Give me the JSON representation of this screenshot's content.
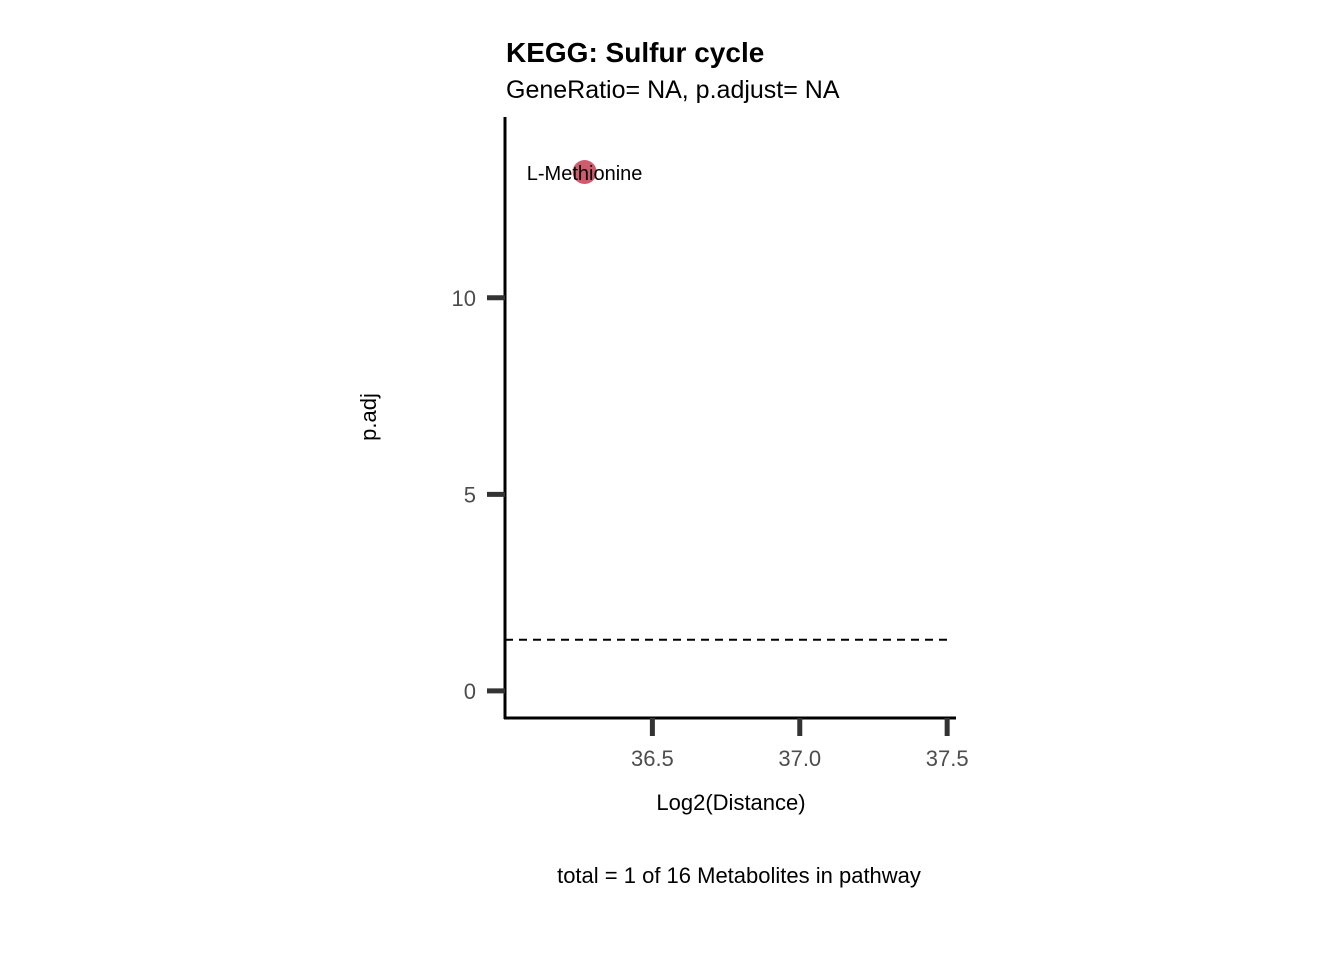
{
  "chart_data": {
    "type": "scatter",
    "title": "KEGG: Sulfur cycle",
    "subtitle": "GeneRatio= NA, p.adjust= NA",
    "xlabel": "Log2(Distance)",
    "ylabel": "p.adj",
    "caption": "total = 1 of 16 Metabolites in pathway",
    "xlim": [
      36.0,
      37.53
    ],
    "ylim": [
      -0.69,
      14.6
    ],
    "x_ticks": [
      36.5,
      37.0,
      37.5
    ],
    "x_tick_labels": [
      "36.5",
      "37.0",
      "37.5"
    ],
    "y_ticks": [
      0,
      5,
      10
    ],
    "y_tick_labels": [
      "0",
      "5",
      "10"
    ],
    "grid": false,
    "threshold_line": {
      "y": 1.3,
      "style": "dashed"
    },
    "points": [
      {
        "label": "L-Methionine",
        "x": 36.27,
        "y": 13.2,
        "color": "#cd5c6c"
      }
    ]
  }
}
